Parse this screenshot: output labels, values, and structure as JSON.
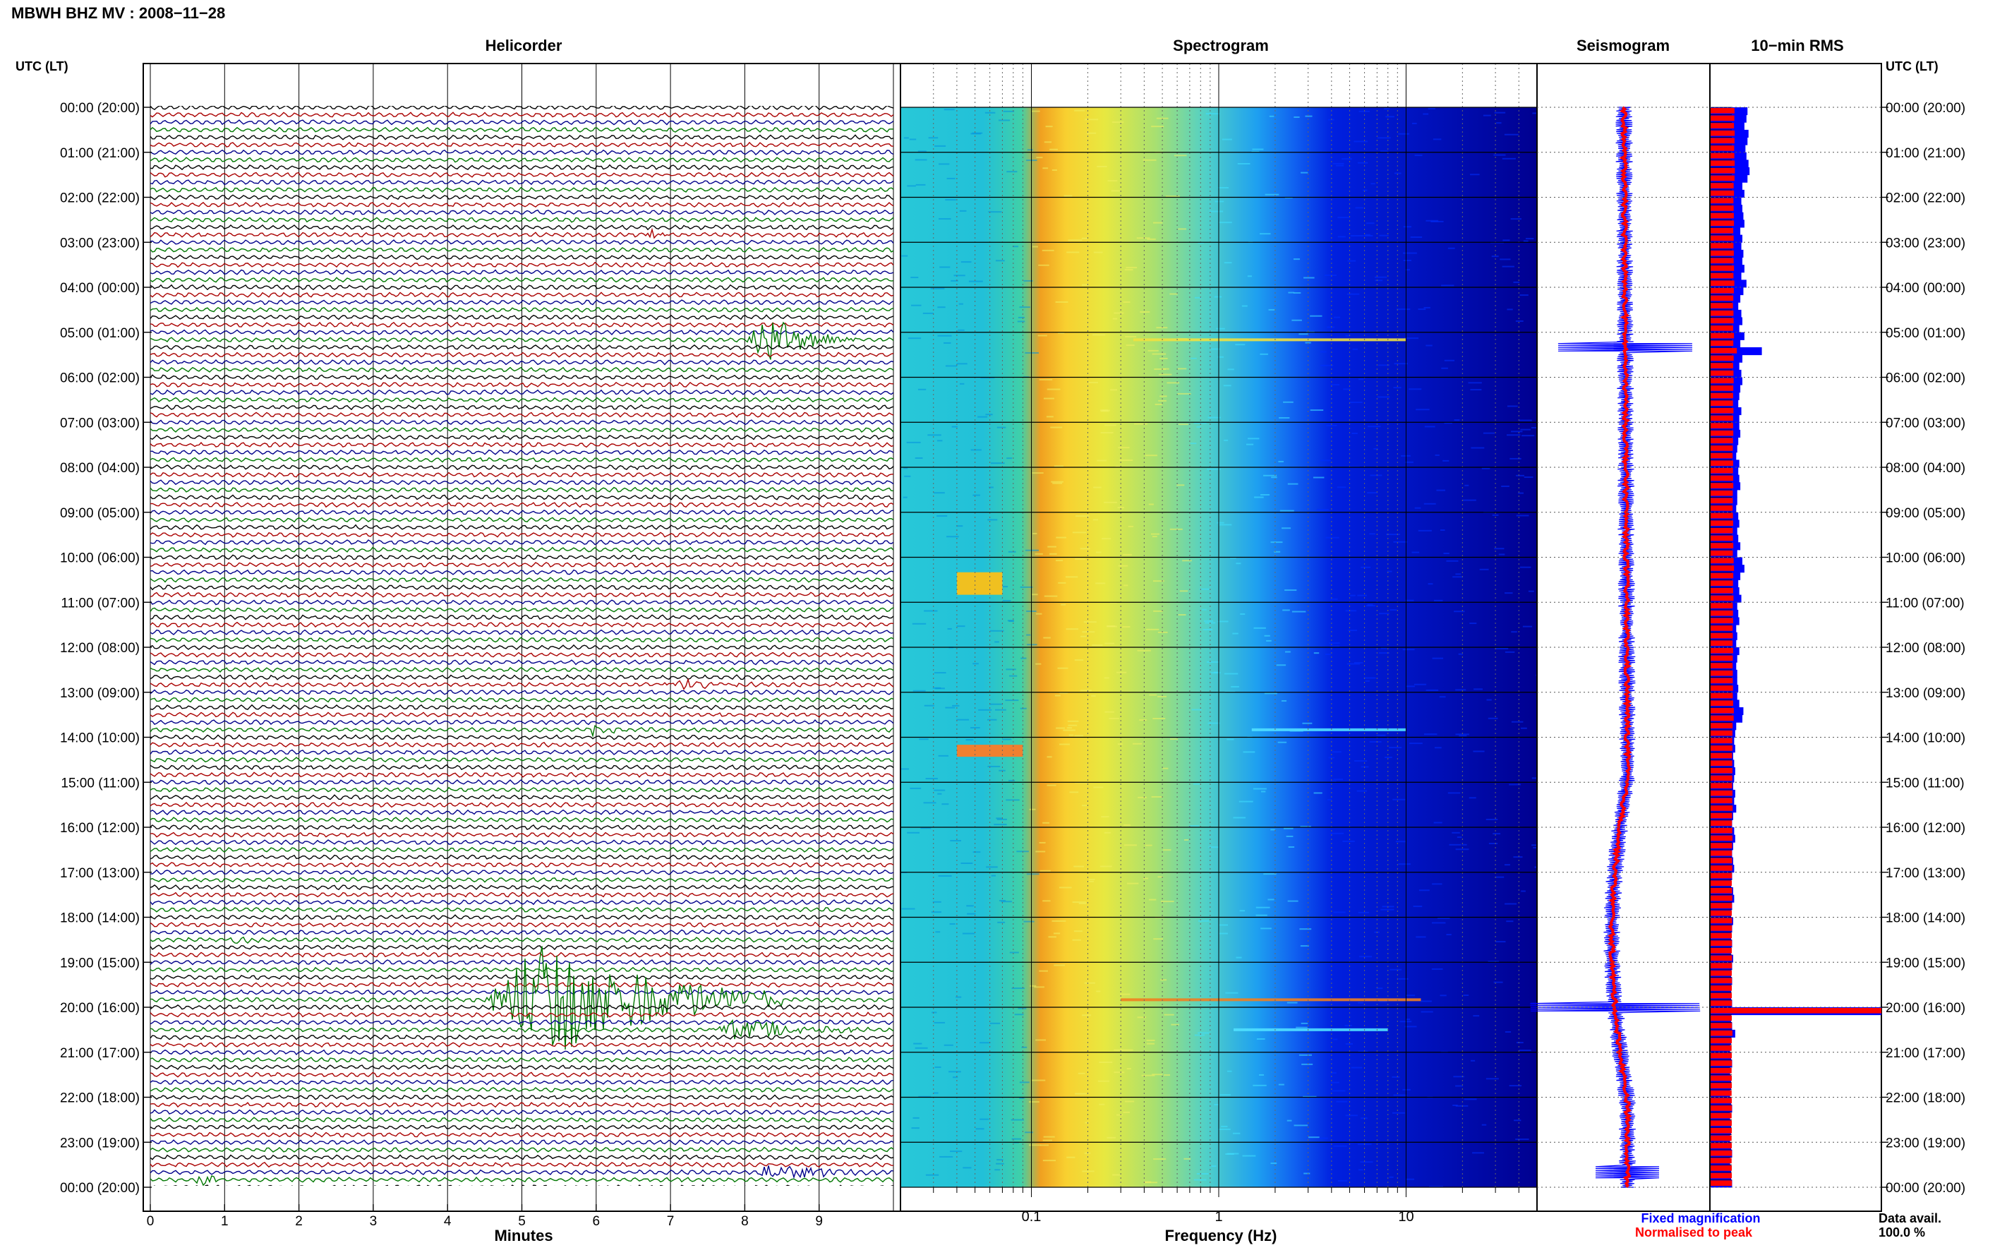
{
  "page": {
    "title": "MBWH BHZ MV : 2008−11−28",
    "left_axis_header": "UTC (LT)",
    "right_axis_header": "UTC (LT)"
  },
  "colors": {
    "heli_traces": [
      "#000000",
      "#aa0000",
      "#00008b",
      "#007700"
    ],
    "fixed": "#0000ff",
    "normalised": "#ff0000",
    "rms_blue": "#0000ff",
    "rms_red": "#ff0000"
  },
  "chart_data": [
    {
      "id": "helicorder",
      "type": "line",
      "title": "Helicorder",
      "xlabel": "Minutes",
      "x_ticks": [
        "0",
        "1",
        "2",
        "3",
        "4",
        "5",
        "6",
        "7",
        "8",
        "9"
      ],
      "xlim": [
        0,
        10
      ],
      "rows_per_hour": 6,
      "hour_labels": [
        "00:00 (20:00)",
        "01:00 (21:00)",
        "02:00 (22:00)",
        "03:00 (23:00)",
        "04:00 (00:00)",
        "05:00 (01:00)",
        "06:00 (02:00)",
        "07:00 (03:00)",
        "08:00 (04:00)",
        "09:00 (05:00)",
        "10:00 (06:00)",
        "11:00 (07:00)",
        "12:00 (08:00)",
        "13:00 (09:00)",
        "14:00 (10:00)",
        "15:00 (11:00)",
        "16:00 (12:00)",
        "17:00 (13:00)",
        "18:00 (14:00)",
        "19:00 (15:00)",
        "20:00 (16:00)",
        "21:00 (17:00)",
        "22:00 (18:00)",
        "23:00 (19:00)",
        "00:00 (20:00)"
      ],
      "events": [
        {
          "row": 31,
          "start_min": 8.0,
          "dur_min": 1.5,
          "amp": 3.2
        },
        {
          "row": 17,
          "start_min": 6.6,
          "dur_min": 0.5,
          "amp": 0.7
        },
        {
          "row": 77,
          "start_min": 6.8,
          "dur_min": 1.6,
          "amp": 0.6
        },
        {
          "row": 83,
          "start_min": 5.9,
          "dur_min": 0.5,
          "amp": 1.2
        },
        {
          "row": 111,
          "start_min": 1.0,
          "dur_min": 0.6,
          "amp": 0.6
        },
        {
          "row": 119,
          "start_min": 4.5,
          "dur_min": 4.0,
          "amp": 9.0
        },
        {
          "row": 123,
          "start_min": 7.5,
          "dur_min": 2.2,
          "amp": 1.6
        },
        {
          "row": 142,
          "start_min": 8.0,
          "dur_min": 1.9,
          "amp": 1.2
        },
        {
          "row": 143,
          "start_min": 0.6,
          "dur_min": 0.4,
          "amp": 1.1
        }
      ]
    },
    {
      "id": "spectrogram",
      "type": "heatmap",
      "title": "Spectrogram",
      "xlabel": "Frequency (Hz)",
      "x_scale": "log",
      "xlim": [
        0.02,
        50
      ],
      "x_ticks": [
        0.1,
        1,
        10
      ],
      "x_tick_labels": [
        "0.1",
        "1",
        "10"
      ]
    },
    {
      "id": "seismogram",
      "type": "line",
      "title": "Seismogram",
      "legend": [
        "Fixed magnification",
        "Normalised to peak"
      ]
    },
    {
      "id": "rms",
      "type": "bar",
      "title": "10−min RMS",
      "data_availability_label": "Data avail.",
      "data_availability_value": "100.0 %",
      "blue_values": [
        0.72,
        0.7,
        0.66,
        0.74,
        0.72,
        0.68,
        0.7,
        0.74,
        0.76,
        0.72,
        0.62,
        0.66,
        0.6,
        0.62,
        0.64,
        0.66,
        0.58,
        0.62,
        0.6,
        0.64,
        0.62,
        0.66,
        0.6,
        0.7,
        0.64,
        0.58,
        0.54,
        0.6,
        0.62,
        0.56,
        0.66,
        0.58,
        1.0,
        0.62,
        0.56,
        0.6,
        0.62,
        0.58,
        0.56,
        0.54,
        0.6,
        0.56,
        0.56,
        0.58,
        0.54,
        0.52,
        0.5,
        0.56,
        0.54,
        0.56,
        0.58,
        0.52,
        0.52,
        0.5,
        0.54,
        0.56,
        0.52,
        0.54,
        0.58,
        0.52,
        0.62,
        0.66,
        0.58,
        0.54,
        0.56,
        0.6,
        0.52,
        0.54,
        0.56,
        0.5,
        0.52,
        0.5,
        0.56,
        0.52,
        0.5,
        0.52,
        0.52,
        0.54,
        0.52,
        0.56,
        0.64,
        0.62,
        0.5,
        0.48,
        0.46,
        0.48,
        0.44,
        0.46,
        0.48,
        0.46,
        0.44,
        0.48,
        0.46,
        0.5,
        0.44,
        0.42,
        0.46,
        0.48,
        0.44,
        0.42,
        0.44,
        0.46,
        0.42,
        0.4,
        0.44,
        0.46,
        0.42,
        0.4,
        0.44,
        0.42,
        0.4,
        0.42,
        0.4,
        0.44,
        0.42,
        0.4,
        0.42,
        0.4,
        0.4,
        0.42,
        1.0,
        0.4,
        0.42,
        0.48,
        0.4,
        0.38,
        0.4,
        0.42,
        0.38,
        0.4,
        0.4,
        0.38,
        0.4,
        0.42,
        0.38,
        0.4,
        0.4,
        0.38,
        0.4,
        0.42,
        0.38,
        0.4,
        0.4,
        0.42
      ]
    }
  ]
}
